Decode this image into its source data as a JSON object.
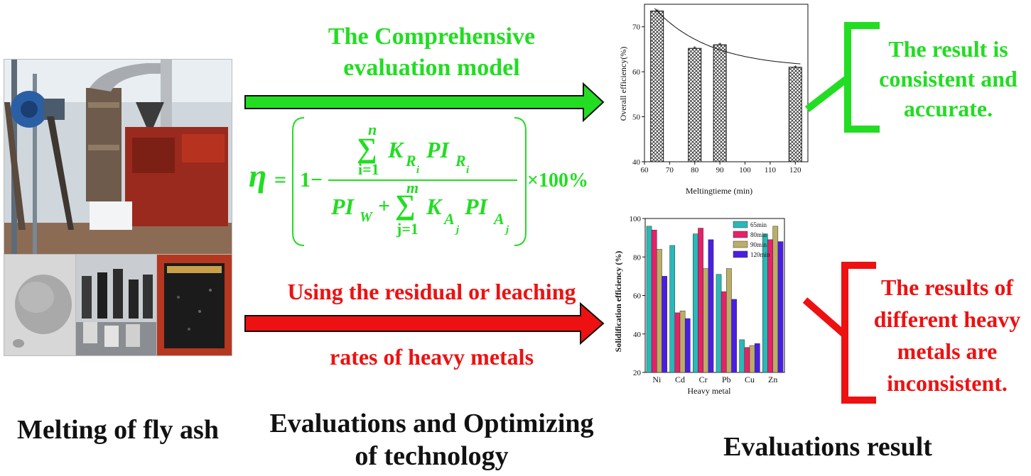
{
  "left": {
    "caption": "Melting of fly ash"
  },
  "middle": {
    "top_label_line1": "The Comprehensive",
    "top_label_line2": "evaluation model",
    "bottom_label_line1": "Using the residual or leaching",
    "bottom_label_line2": "rates of  heavy metals",
    "caption_line1": "Evaluations and Optimizing",
    "caption_line2": "of technology",
    "formula": {
      "eta": "η",
      "equals": "=",
      "one_minus": "1−",
      "sum_top_upper": "n",
      "sum_top_lower": "i=1",
      "K": "K",
      "R": "R",
      "i": "i",
      "PI": "PI",
      "PIW_sub": "W",
      "plus": "+",
      "sum_bottom_upper": "m",
      "sum_bottom_lower": "j=1",
      "A": "A",
      "j": "j",
      "times100": "×100%",
      "sigma": "∑"
    }
  },
  "right": {
    "caption": "Evaluations result",
    "top_note": [
      "The result is",
      "consistent and",
      "accurate."
    ],
    "bottom_note": [
      "The results of",
      "different heavy",
      "metals are",
      "inconsistent."
    ]
  },
  "chart_data": [
    {
      "type": "bar",
      "xlabel": "Meltingtieme (min)",
      "ylabel": "Overall efficiency(%)",
      "x": [
        65,
        80,
        90,
        120
      ],
      "values": [
        73.5,
        65.2,
        66.0,
        61.0
      ],
      "xlim": [
        60,
        125
      ],
      "ylim": [
        40,
        75
      ],
      "xticks": [
        "60",
        "70",
        "80",
        "90",
        "100",
        "110",
        "120"
      ],
      "yticks": [
        "40",
        "50",
        "60",
        "70"
      ],
      "trend": "smooth decreasing fit curve"
    },
    {
      "type": "bar",
      "xlabel": "Heavy metal",
      "ylabel": "Solidification efficiency (%)",
      "categories": [
        "Ni",
        "Cd",
        "Cr",
        "Pb",
        "Cu",
        "Zn"
      ],
      "ylim": [
        20,
        100
      ],
      "yticks": [
        "20",
        "40",
        "60",
        "80",
        "100"
      ],
      "legend_position": "top-right",
      "series": [
        {
          "name": "65min",
          "color": "#2ab8b8",
          "values": [
            96,
            86,
            92,
            71,
            37,
            92
          ]
        },
        {
          "name": "80min",
          "color": "#e8206a",
          "values": [
            94,
            51,
            95,
            62,
            33,
            89
          ]
        },
        {
          "name": "90min",
          "color": "#bcae66",
          "values": [
            84,
            52,
            74,
            74,
            34,
            96
          ]
        },
        {
          "name": "120min",
          "color": "#4a1ee6",
          "values": [
            70,
            48,
            89,
            58,
            35,
            88
          ]
        }
      ]
    }
  ]
}
